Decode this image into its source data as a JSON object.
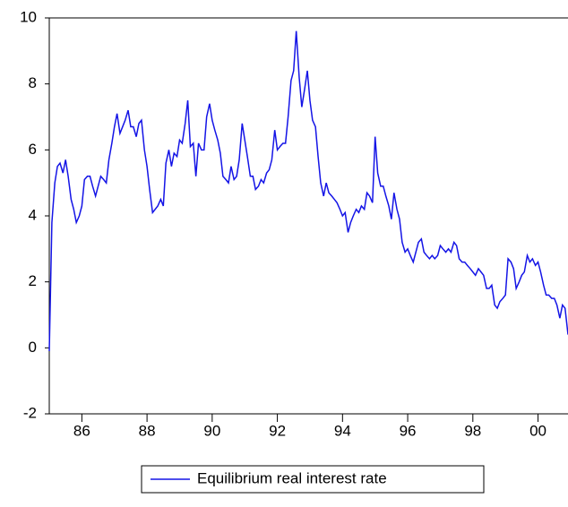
{
  "chart_data": {
    "type": "line",
    "x": [
      1985.0,
      1985.08,
      1985.17,
      1985.25,
      1985.33,
      1985.42,
      1985.5,
      1985.58,
      1985.67,
      1985.75,
      1985.83,
      1985.92,
      1986.0,
      1986.08,
      1986.17,
      1986.25,
      1986.33,
      1986.42,
      1986.5,
      1986.58,
      1986.67,
      1986.75,
      1986.83,
      1986.92,
      1987.0,
      1987.08,
      1987.17,
      1987.25,
      1987.33,
      1987.42,
      1987.5,
      1987.58,
      1987.67,
      1987.75,
      1987.83,
      1987.92,
      1988.0,
      1988.08,
      1988.17,
      1988.25,
      1988.33,
      1988.42,
      1988.5,
      1988.58,
      1988.67,
      1988.75,
      1988.83,
      1988.92,
      1989.0,
      1989.08,
      1989.17,
      1989.25,
      1989.33,
      1989.42,
      1989.5,
      1989.58,
      1989.67,
      1989.75,
      1989.83,
      1989.92,
      1990.0,
      1990.08,
      1990.17,
      1990.25,
      1990.33,
      1990.42,
      1990.5,
      1990.58,
      1990.67,
      1990.75,
      1990.83,
      1990.92,
      1991.0,
      1991.08,
      1991.17,
      1991.25,
      1991.33,
      1991.42,
      1991.5,
      1991.58,
      1991.67,
      1991.75,
      1991.83,
      1991.92,
      1992.0,
      1992.08,
      1992.17,
      1992.25,
      1992.33,
      1992.42,
      1992.5,
      1992.58,
      1992.67,
      1992.75,
      1992.83,
      1992.92,
      1993.0,
      1993.08,
      1993.17,
      1993.25,
      1993.33,
      1993.42,
      1993.5,
      1993.58,
      1993.67,
      1993.75,
      1993.83,
      1993.92,
      1994.0,
      1994.08,
      1994.17,
      1994.25,
      1994.33,
      1994.42,
      1994.5,
      1994.58,
      1994.67,
      1994.75,
      1994.83,
      1994.92,
      1995.0,
      1995.08,
      1995.17,
      1995.25,
      1995.33,
      1995.42,
      1995.5,
      1995.58,
      1995.67,
      1995.75,
      1995.83,
      1995.92,
      1996.0,
      1996.08,
      1996.17,
      1996.25,
      1996.33,
      1996.42,
      1996.5,
      1996.58,
      1996.67,
      1996.75,
      1996.83,
      1996.92,
      1997.0,
      1997.08,
      1997.17,
      1997.25,
      1997.33,
      1997.42,
      1997.5,
      1997.58,
      1997.67,
      1997.75,
      1997.83,
      1997.92,
      1998.0,
      1998.08,
      1998.17,
      1998.25,
      1998.33,
      1998.42,
      1998.5,
      1998.58,
      1998.67,
      1998.75,
      1998.83,
      1998.92,
      1999.0,
      1999.08,
      1999.17,
      1999.25,
      1999.33,
      1999.42,
      1999.5,
      1999.58,
      1999.67,
      1999.75,
      1999.83,
      1999.92,
      2000.0,
      2000.08,
      2000.17,
      2000.25,
      2000.33,
      2000.42,
      2000.5,
      2000.58,
      2000.67,
      2000.75,
      2000.83,
      2000.92
    ],
    "series": [
      {
        "name": "Equilibrium real interest rate",
        "color": "#1414e6",
        "values": [
          -0.1,
          3.8,
          5.0,
          5.5,
          5.6,
          5.3,
          5.7,
          5.2,
          4.5,
          4.2,
          3.8,
          4.0,
          4.3,
          5.1,
          5.2,
          5.2,
          4.9,
          4.6,
          4.9,
          5.2,
          5.1,
          5.0,
          5.7,
          6.2,
          6.7,
          7.1,
          6.5,
          6.7,
          6.9,
          7.2,
          6.7,
          6.7,
          6.4,
          6.8,
          6.9,
          6.0,
          5.5,
          4.8,
          4.1,
          4.2,
          4.3,
          4.5,
          4.3,
          5.6,
          6.0,
          5.5,
          5.9,
          5.8,
          6.3,
          6.2,
          6.8,
          7.5,
          6.1,
          6.2,
          5.2,
          6.2,
          6.0,
          6.0,
          7.0,
          7.4,
          6.9,
          6.6,
          6.3,
          5.9,
          5.2,
          5.1,
          5.0,
          5.5,
          5.1,
          5.2,
          5.7,
          6.8,
          6.3,
          5.8,
          5.2,
          5.2,
          4.8,
          4.9,
          5.1,
          5.0,
          5.3,
          5.4,
          5.7,
          6.6,
          6.0,
          6.1,
          6.2,
          6.2,
          7.0,
          8.1,
          8.4,
          9.6,
          8.2,
          7.3,
          7.8,
          8.4,
          7.5,
          6.9,
          6.7,
          5.8,
          5.0,
          4.6,
          5.0,
          4.7,
          4.6,
          4.5,
          4.4,
          4.2,
          4.0,
          4.1,
          3.5,
          3.8,
          4.0,
          4.2,
          4.1,
          4.3,
          4.2,
          4.7,
          4.6,
          4.4,
          6.4,
          5.3,
          4.9,
          4.9,
          4.6,
          4.3,
          3.9,
          4.7,
          4.2,
          3.9,
          3.2,
          2.9,
          3.0,
          2.8,
          2.6,
          2.9,
          3.2,
          3.3,
          2.9,
          2.8,
          2.7,
          2.8,
          2.7,
          2.8,
          3.1,
          3.0,
          2.9,
          3.0,
          2.9,
          3.2,
          3.1,
          2.7,
          2.6,
          2.6,
          2.5,
          2.4,
          2.3,
          2.2,
          2.4,
          2.3,
          2.2,
          1.8,
          1.8,
          1.9,
          1.3,
          1.2,
          1.4,
          1.5,
          1.6,
          2.7,
          2.6,
          2.4,
          1.8,
          2.0,
          2.2,
          2.3,
          2.8,
          2.6,
          2.7,
          2.5,
          2.6,
          2.3,
          1.9,
          1.6,
          1.6,
          1.5,
          1.5,
          1.3,
          0.9,
          1.3,
          1.2,
          0.4
        ]
      }
    ],
    "xlim": [
      1985.0,
      2000.92
    ],
    "xticks": [
      {
        "value": 1986,
        "label": "86"
      },
      {
        "value": 1988,
        "label": "88"
      },
      {
        "value": 1990,
        "label": "90"
      },
      {
        "value": 1992,
        "label": "92"
      },
      {
        "value": 1994,
        "label": "94"
      },
      {
        "value": 1996,
        "label": "96"
      },
      {
        "value": 1998,
        "label": "98"
      },
      {
        "value": 2000,
        "label": "00"
      }
    ],
    "ylim": [
      -2,
      10
    ],
    "yticks": [
      -2,
      0,
      2,
      4,
      6,
      8,
      10
    ],
    "grid": false,
    "legend": "bottom"
  }
}
